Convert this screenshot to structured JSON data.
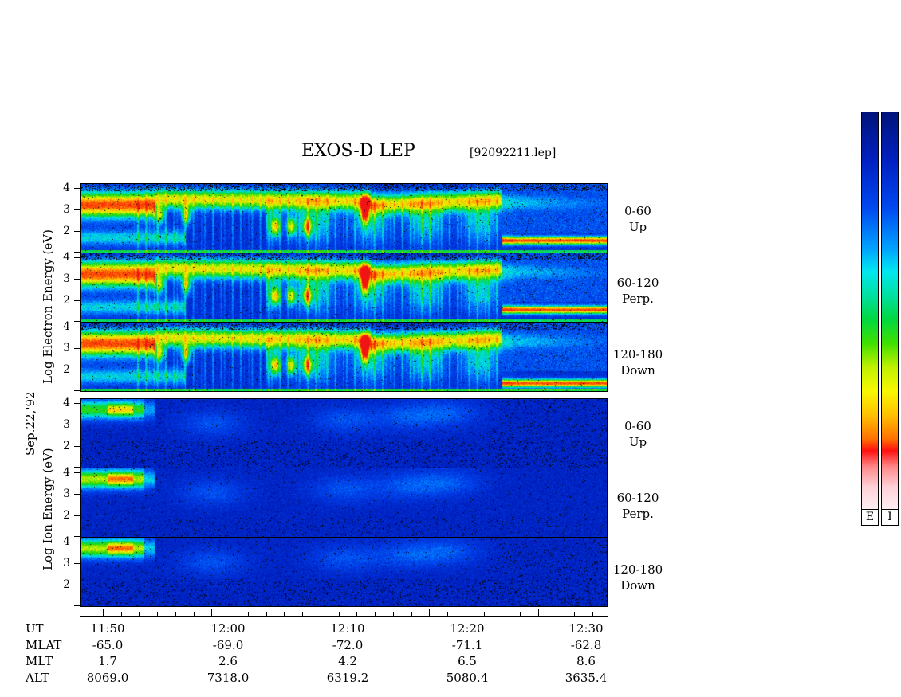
{
  "header": {
    "title": "EXOS-D LEP",
    "file": "[92092211.lep]"
  },
  "date_label": "Sep.22,'92",
  "electron_axis_label": "Log   Electron  Energy (eV)",
  "ion_axis_label": "Log   Ion  Energy (eV)",
  "panels": [
    {
      "species": "electron",
      "angle": "0-60",
      "dir": "Up"
    },
    {
      "species": "electron",
      "angle": "60-120",
      "dir": "Perp."
    },
    {
      "species": "electron",
      "angle": "120-180",
      "dir": "Down"
    },
    {
      "species": "ion",
      "angle": "0-60",
      "dir": "Up"
    },
    {
      "species": "ion",
      "angle": "60-120",
      "dir": "Perp."
    },
    {
      "species": "ion",
      "angle": "120-180",
      "dir": "Down"
    }
  ],
  "y_ticks": [
    "2",
    "3",
    "4"
  ],
  "colorbars": [
    {
      "label": "E"
    },
    {
      "label": "I"
    }
  ],
  "x_rows": {
    "names": [
      "UT",
      "MLAT",
      "MLT",
      "ALT"
    ],
    "UT": [
      "11:50",
      "12:00",
      "12:10",
      "12:20",
      "12:30"
    ],
    "MLAT": [
      "-65.0",
      "-69.0",
      "-72.0",
      "-71.1",
      "-62.8"
    ],
    "MLT": [
      "1.7",
      "2.6",
      "4.2",
      "6.5",
      "8.6"
    ],
    "ALT": [
      "8069.0",
      "7318.0",
      "6319.2",
      "5080.4",
      "3635.4"
    ]
  },
  "chart_data": {
    "type": "heatmap",
    "title": "EXOS-D LEP",
    "x_axis": "UT",
    "x_ticks": [
      "11:50",
      "12:00",
      "12:10",
      "12:20",
      "12:30"
    ],
    "ylabel_electron": "Log Electron Energy (eV)",
    "ylabel_ion": "Log Ion Energy (eV)",
    "y_range": [
      1,
      4
    ],
    "y_ticks": [
      2,
      3,
      4
    ],
    "panels": [
      "Electron 0-60 Up",
      "Electron 60-120 Perp.",
      "Electron 120-180 Down",
      "Ion 0-60 Up",
      "Ion 60-120 Perp.",
      "Ion 120-180 Down"
    ]
  }
}
